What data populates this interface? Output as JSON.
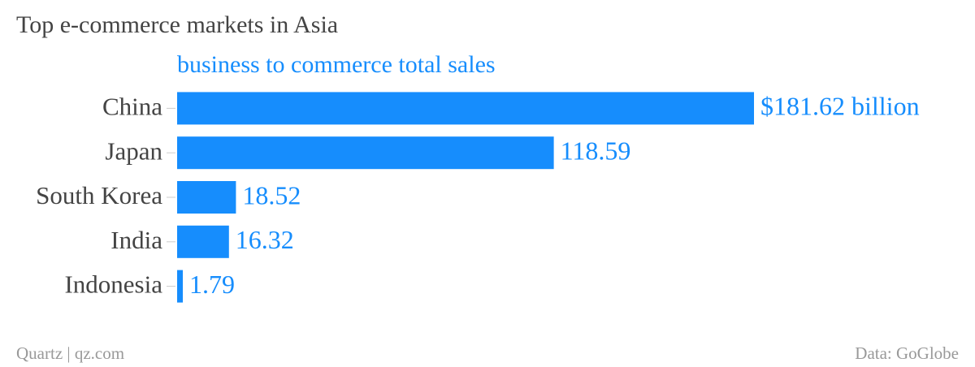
{
  "chart_data": {
    "type": "bar",
    "orientation": "horizontal",
    "title": "Top e-commerce markets in Asia",
    "subtitle": "business to commerce total sales",
    "categories": [
      "China",
      "Japan",
      "South Korea",
      "India",
      "Indonesia"
    ],
    "values": [
      181.62,
      118.59,
      18.52,
      16.32,
      1.79
    ],
    "value_labels": [
      "$181.62 billion",
      "118.59",
      "18.52",
      "16.32",
      "1.79"
    ],
    "color": "#168dfd",
    "source": "Data: GoGlobe",
    "credit": "Quartz | qz.com"
  }
}
